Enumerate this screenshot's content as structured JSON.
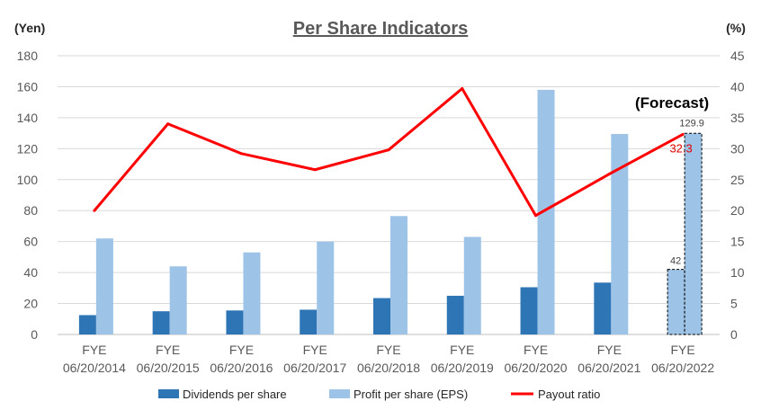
{
  "chart_data": {
    "type": "bar",
    "title": "Per Share Indicators",
    "ylabel_left": "(Yen)",
    "ylabel_right": "(%)",
    "ylim_left": [
      0,
      180
    ],
    "ylim_right": [
      0,
      45
    ],
    "yticks_left": [
      0,
      20,
      40,
      60,
      80,
      100,
      120,
      140,
      160,
      180
    ],
    "yticks_right": [
      0,
      5,
      10,
      15,
      20,
      25,
      30,
      35,
      40,
      45
    ],
    "categories": [
      {
        "line1": "FYE",
        "line2": "06/20/2014"
      },
      {
        "line1": "FYE",
        "line2": "06/20/2015"
      },
      {
        "line1": "FYE",
        "line2": "06/20/2016"
      },
      {
        "line1": "FYE",
        "line2": "06/20/2017"
      },
      {
        "line1": "FYE",
        "line2": "06/20/2018"
      },
      {
        "line1": "FYE",
        "line2": "06/20/2019"
      },
      {
        "line1": "FYE",
        "line2": "06/20/2020"
      },
      {
        "line1": "FYE",
        "line2": "06/20/2021"
      },
      {
        "line1": "FYE",
        "line2": "06/20/2022"
      }
    ],
    "series": [
      {
        "name": "Dividends per share",
        "type": "bar",
        "axis": "left",
        "color": "#2e75b6",
        "values": [
          12.5,
          15,
          15.5,
          16,
          23.5,
          25,
          30.5,
          33.5,
          42
        ]
      },
      {
        "name": "Profit per share (EPS)",
        "type": "bar",
        "axis": "left",
        "color": "#9dc3e6",
        "values": [
          62,
          44,
          53,
          60,
          76.5,
          63,
          158,
          129.5,
          129.9
        ]
      },
      {
        "name": "Payout ratio",
        "type": "line",
        "axis": "right",
        "color": "#ff0000",
        "values": [
          20,
          34,
          29.2,
          26.6,
          29.8,
          39.7,
          19.2,
          25.9,
          32.3
        ]
      }
    ],
    "forecast": {
      "label": "(Forecast)",
      "dividend_label": "42",
      "eps_label": "129.9",
      "ratio_label": "32.3"
    },
    "legend_position": "bottom"
  }
}
